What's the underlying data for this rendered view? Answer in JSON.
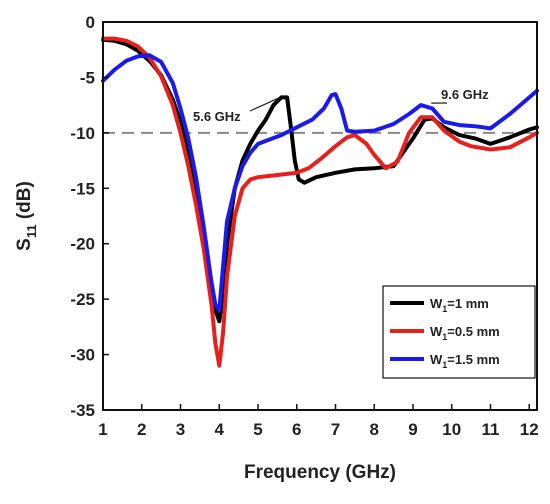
{
  "chart_data": {
    "type": "line",
    "title": "",
    "xlabel": "Frequency (GHz)",
    "ylabel_main": "S",
    "ylabel_sub": "11",
    "ylabel_unit": " (dB)",
    "xlim": [
      1,
      12.2
    ],
    "ylim": [
      -35,
      0
    ],
    "xticks": [
      1,
      2,
      3,
      4,
      5,
      6,
      7,
      8,
      9,
      10,
      11,
      12
    ],
    "yticks": [
      0,
      -5,
      -10,
      -15,
      -20,
      -25,
      -30,
      -35
    ],
    "reference_line": {
      "y": -10,
      "style": "dashed",
      "color": "#888888"
    },
    "grid": false,
    "legend_position": "bottom-right",
    "legend": [
      {
        "prefix": "W",
        "sub": "1",
        "suffix": "=1 mm",
        "color": "#000000"
      },
      {
        "prefix": "W",
        "sub": "1",
        "suffix": "=0.5 mm",
        "color": "#e8201c"
      },
      {
        "prefix": "W",
        "sub": "1",
        "suffix": "=1.5 mm",
        "color": "#1a1aee"
      }
    ],
    "annotations": [
      {
        "text": "5.6 GHz",
        "x": 5.65,
        "y": -6.7
      },
      {
        "text": "9.6 GHz",
        "x": 9.6,
        "y": -7.5
      }
    ],
    "series": [
      {
        "color": "#000000",
        "x": [
          1.0,
          1.3,
          1.6,
          1.9,
          2.2,
          2.5,
          2.8,
          3.0,
          3.2,
          3.4,
          3.6,
          3.8,
          3.9,
          4.0,
          4.1,
          4.2,
          4.4,
          4.6,
          4.8,
          5.0,
          5.2,
          5.4,
          5.6,
          5.75,
          5.85,
          5.95,
          6.05,
          6.2,
          6.5,
          7.0,
          7.5,
          8.0,
          8.5,
          9.0,
          9.3,
          9.5,
          9.8,
          10.2,
          10.6,
          11.0,
          11.5,
          12.0,
          12.2
        ],
        "y": [
          -1.6,
          -1.7,
          -2.0,
          -2.6,
          -3.5,
          -4.8,
          -7.0,
          -9.0,
          -11.5,
          -15.0,
          -19.5,
          -23.5,
          -26.0,
          -27.0,
          -24.5,
          -20.0,
          -15.0,
          -12.5,
          -11.0,
          -9.8,
          -8.8,
          -7.5,
          -6.8,
          -6.8,
          -9.5,
          -12.5,
          -14.2,
          -14.5,
          -14.0,
          -13.6,
          -13.3,
          -13.2,
          -13.0,
          -10.5,
          -8.8,
          -8.7,
          -9.5,
          -10.2,
          -10.5,
          -11.0,
          -10.4,
          -9.7,
          -9.5
        ]
      },
      {
        "color": "#e8201c",
        "x": [
          1.0,
          1.3,
          1.6,
          1.9,
          2.2,
          2.5,
          2.8,
          3.0,
          3.2,
          3.4,
          3.6,
          3.8,
          3.9,
          4.0,
          4.1,
          4.2,
          4.4,
          4.6,
          4.8,
          5.0,
          5.5,
          6.0,
          6.3,
          6.6,
          7.0,
          7.3,
          7.5,
          7.8,
          8.0,
          8.3,
          8.6,
          8.9,
          9.2,
          9.5,
          9.8,
          10.2,
          10.5,
          11.0,
          11.5,
          12.0,
          12.2
        ],
        "y": [
          -1.5,
          -1.5,
          -1.7,
          -2.2,
          -3.2,
          -4.9,
          -7.5,
          -10.0,
          -13.0,
          -16.5,
          -20.5,
          -25.5,
          -29.0,
          -31.0,
          -28.0,
          -23.0,
          -17.5,
          -15.0,
          -14.2,
          -14.0,
          -13.8,
          -13.6,
          -13.2,
          -12.4,
          -11.2,
          -10.4,
          -10.2,
          -11.0,
          -12.0,
          -13.2,
          -12.6,
          -10.0,
          -8.6,
          -8.6,
          -9.8,
          -10.8,
          -11.2,
          -11.5,
          -11.3,
          -10.4,
          -10.0
        ]
      },
      {
        "color": "#1a1aee",
        "x": [
          1.0,
          1.3,
          1.6,
          1.9,
          2.2,
          2.5,
          2.8,
          3.0,
          3.2,
          3.4,
          3.6,
          3.8,
          3.9,
          4.0,
          4.1,
          4.2,
          4.4,
          4.6,
          4.8,
          5.0,
          5.3,
          5.6,
          6.0,
          6.4,
          6.7,
          6.9,
          7.0,
          7.15,
          7.3,
          7.5,
          8.0,
          8.5,
          8.9,
          9.2,
          9.5,
          9.8,
          10.2,
          10.6,
          11.0,
          11.5,
          12.0,
          12.2
        ],
        "y": [
          -5.3,
          -4.3,
          -3.5,
          -3.1,
          -3.0,
          -3.6,
          -5.5,
          -7.8,
          -10.5,
          -14.0,
          -18.5,
          -23.5,
          -25.5,
          -26.0,
          -22.0,
          -18.0,
          -15.0,
          -13.0,
          -11.8,
          -11.0,
          -10.6,
          -10.2,
          -9.5,
          -8.8,
          -7.8,
          -6.6,
          -6.5,
          -7.8,
          -9.8,
          -9.9,
          -9.8,
          -9.2,
          -8.3,
          -7.5,
          -7.8,
          -9.0,
          -9.3,
          -9.4,
          -9.6,
          -8.3,
          -6.8,
          -6.2
        ]
      }
    ]
  }
}
